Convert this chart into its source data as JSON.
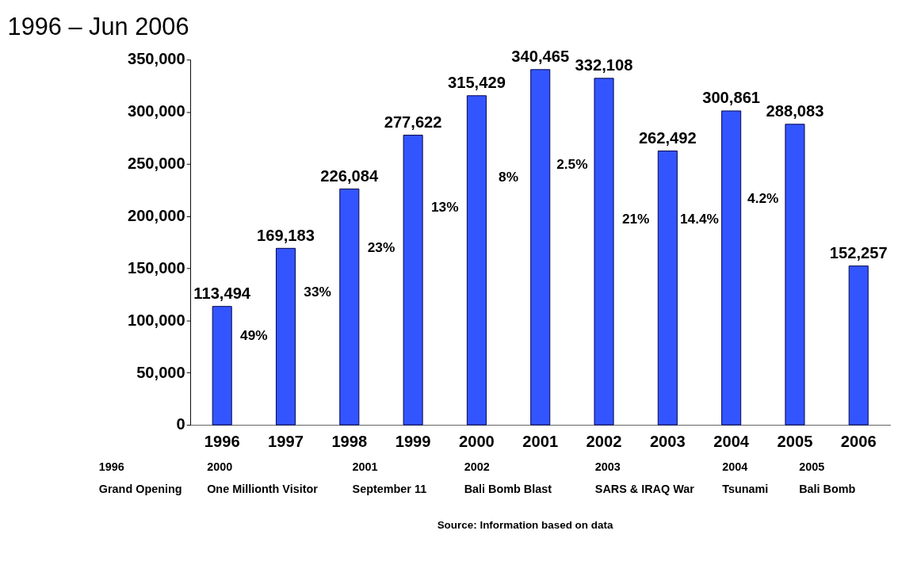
{
  "chart_data": {
    "type": "bar",
    "title": "1996 – Jun 2006",
    "categories": [
      "1996",
      "1997",
      "1998",
      "1999",
      "2000",
      "2001",
      "2002",
      "2003",
      "2004",
      "2005",
      "2006"
    ],
    "values": [
      113494,
      169183,
      226084,
      277622,
      315429,
      340465,
      332108,
      262492,
      300861,
      288083,
      152257
    ],
    "color": "#3355ff",
    "grid": false,
    "value_labels": [
      "113,494",
      "169,183",
      "226,084",
      "277,622",
      "315,429",
      "340,465",
      "332,108",
      "262,492",
      "300,861",
      "288,083",
      "152,257"
    ],
    "ylim": [
      0,
      350000
    ],
    "yticks": [
      0,
      {
        "value": 50000,
        "label": "50,000"
      },
      {
        "value": 100000,
        "label": "100,000"
      },
      {
        "value": 150000,
        "label": "150,000"
      },
      {
        "value": 200000,
        "label": "200,000"
      },
      {
        "value": 250000,
        "label": "250,000"
      },
      {
        "value": 300000,
        "label": "300,000"
      },
      {
        "value": 350000,
        "label": "350,000"
      }
    ],
    "annotations": [
      "49%",
      "33%",
      "23%",
      "13%",
      "8%",
      "2.5%",
      "21%",
      "14.4%",
      "4.2%",
      "1996\nGrand Opening",
      "2000\nOne Millionth Visitor",
      "2001\nSeptember 11",
      "2002\nBali Bomb Blast",
      "2003\nSARS & IRAQ War",
      "2004\nTsunami",
      "2005\nBali Bomb",
      "Source: Information based on data"
    ]
  }
}
